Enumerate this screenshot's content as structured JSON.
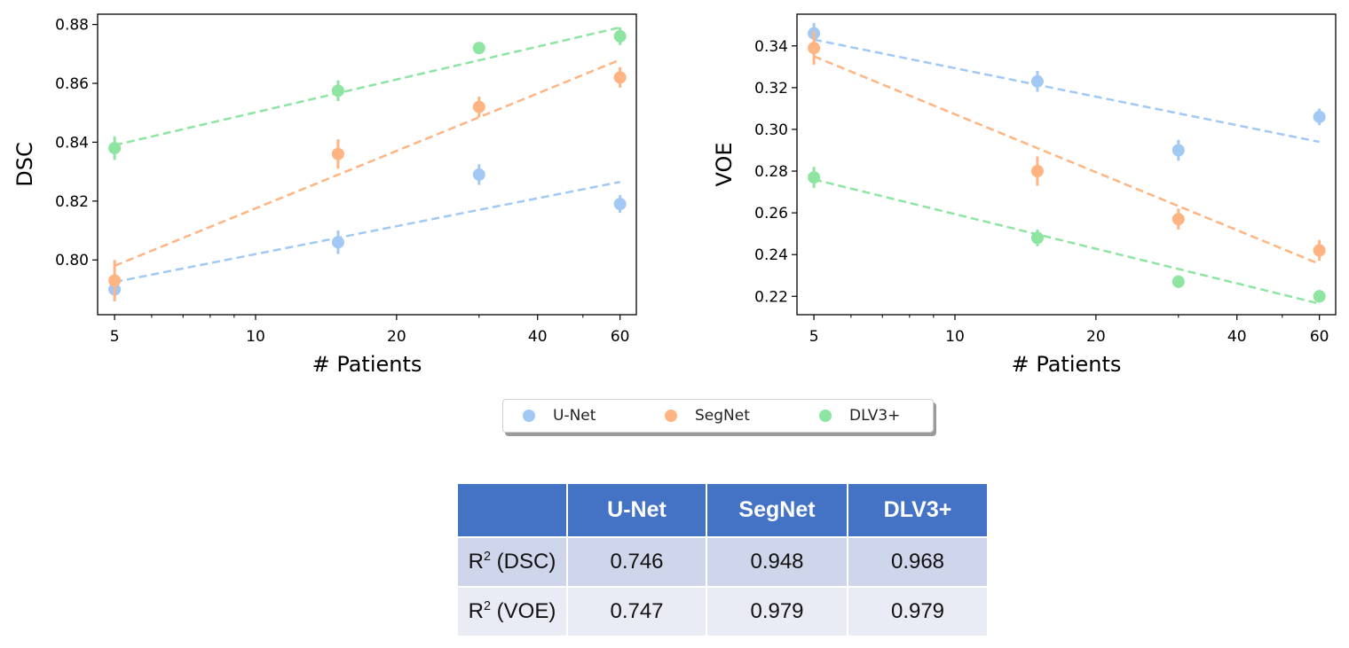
{
  "chart_data": [
    {
      "type": "scatter",
      "xscale": "log",
      "xlabel": "# Patients",
      "ylabel": "DSC",
      "xticks": [
        5,
        10,
        20,
        40,
        60
      ],
      "yticks": [
        0.8,
        0.82,
        0.84,
        0.86,
        0.88
      ],
      "ytick_labels": [
        "0.80",
        "0.82",
        "0.84",
        "0.86",
        "0.88"
      ],
      "xlim": [
        4.6,
        65
      ],
      "ylim": [
        0.7814,
        0.8835
      ],
      "series": [
        {
          "name": "U-Net",
          "x": [
            5,
            15,
            30,
            60
          ],
          "y": [
            0.79,
            0.806,
            0.829,
            0.819
          ],
          "err": [
            0.004,
            0.004,
            0.0035,
            0.003
          ],
          "fit": [
            [
              5,
              0.7925
            ],
            [
              60,
              0.8265
            ]
          ]
        },
        {
          "name": "SegNet",
          "x": [
            5,
            15,
            30,
            60
          ],
          "y": [
            0.793,
            0.836,
            0.852,
            0.862
          ],
          "err": [
            0.007,
            0.005,
            0.0035,
            0.0035
          ],
          "fit": [
            [
              5,
              0.798
            ],
            [
              60,
              0.868
            ]
          ]
        },
        {
          "name": "DLV3+",
          "x": [
            5,
            15,
            30,
            60
          ],
          "y": [
            0.838,
            0.8575,
            0.872,
            0.876
          ],
          "err": [
            0.004,
            0.0035,
            0.002,
            0.003
          ],
          "fit": [
            [
              5,
              0.839
            ],
            [
              60,
              0.879
            ]
          ]
        }
      ]
    },
    {
      "type": "scatter",
      "xscale": "log",
      "xlabel": "# Patients",
      "ylabel": "VOE",
      "xticks": [
        5,
        10,
        20,
        40,
        60
      ],
      "yticks": [
        0.22,
        0.24,
        0.26,
        0.28,
        0.3,
        0.32,
        0.34
      ],
      "ytick_labels": [
        "0.22",
        "0.24",
        "0.26",
        "0.28",
        "0.30",
        "0.32",
        "0.34"
      ],
      "xlim": [
        4.6,
        65
      ],
      "ylim": [
        0.2112,
        0.3552
      ],
      "series": [
        {
          "name": "U-Net",
          "x": [
            5,
            15,
            30,
            60
          ],
          "y": [
            0.346,
            0.323,
            0.29,
            0.306
          ],
          "err": [
            0.005,
            0.005,
            0.005,
            0.004
          ],
          "fit": [
            [
              5,
              0.343
            ],
            [
              60,
              0.294
            ]
          ]
        },
        {
          "name": "SegNet",
          "x": [
            5,
            15,
            30,
            60
          ],
          "y": [
            0.339,
            0.28,
            0.257,
            0.242
          ],
          "err": [
            0.008,
            0.007,
            0.005,
            0.005
          ],
          "fit": [
            [
              5,
              0.335
            ],
            [
              60,
              0.2355
            ]
          ]
        },
        {
          "name": "DLV3+",
          "x": [
            5,
            15,
            30,
            60
          ],
          "y": [
            0.277,
            0.248,
            0.227,
            0.22
          ],
          "err": [
            0.005,
            0.004,
            0.003,
            0.003
          ],
          "fit": [
            [
              5,
              0.276
            ],
            [
              60,
              0.2165
            ]
          ]
        }
      ]
    },
    {
      "type": "table",
      "columns": [
        "",
        "U-Net",
        "SegNet",
        "DLV3+"
      ],
      "rows": [
        {
          "label_main": "R",
          "label_sup": "2",
          "label_rest": " (DSC)",
          "values": [
            "0.746",
            "0.948",
            "0.968"
          ]
        },
        {
          "label_main": "R",
          "label_sup": "2",
          "label_rest": " (VOE)",
          "values": [
            "0.747",
            "0.979",
            "0.979"
          ]
        }
      ]
    }
  ],
  "legend": [
    {
      "name": "U-Net",
      "color": "#a1c9f4"
    },
    {
      "name": "SegNet",
      "color": "#ffb482"
    },
    {
      "name": "DLV3+",
      "color": "#8de5a1"
    }
  ],
  "colors": {
    "U-Net": "#a1c9f4",
    "SegNet": "#ffb482",
    "DLV3+": "#8de5a1"
  }
}
